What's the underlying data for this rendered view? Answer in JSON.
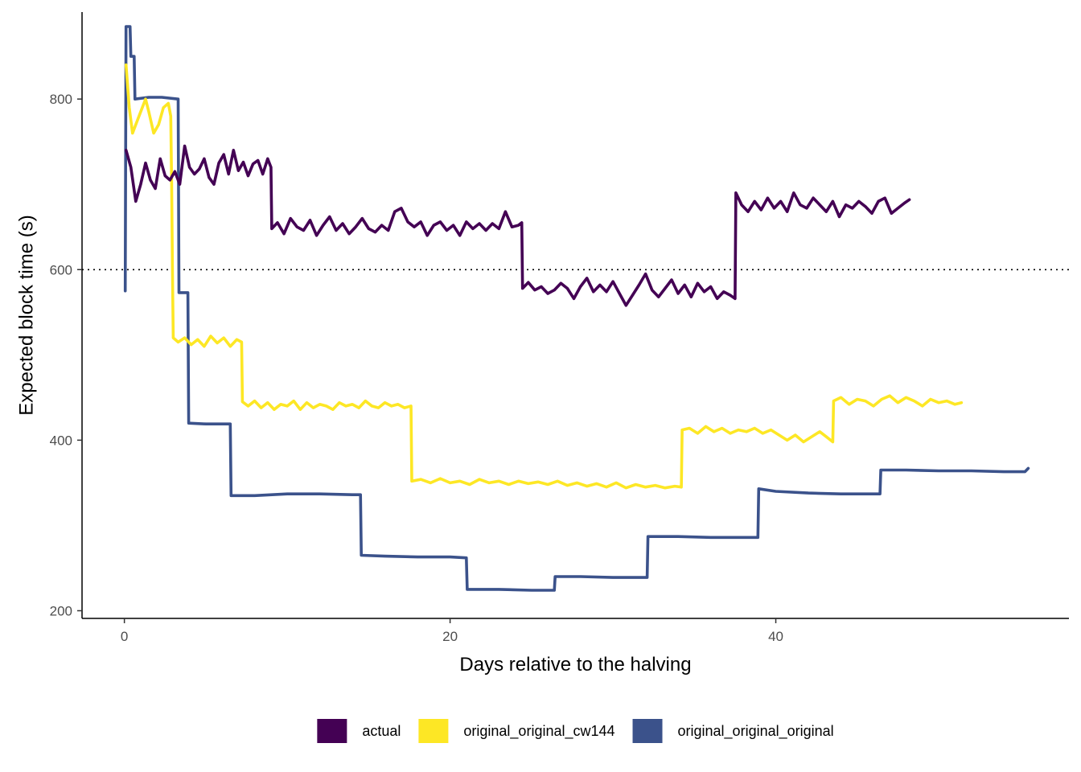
{
  "chart_data": {
    "type": "line",
    "xlabel": "Days relative to the halving",
    "ylabel": "Expected block time (s)",
    "xlim": [
      -2.6,
      58.0
    ],
    "ylim": [
      191,
      902
    ],
    "x_ticks": [
      0,
      20,
      40
    ],
    "y_ticks": [
      200,
      400,
      600,
      800
    ],
    "reference_line": {
      "y": 600,
      "style": "dotted"
    },
    "grid": false,
    "legend_position": "bottom",
    "series": [
      {
        "name": "actual",
        "color": "#440154",
        "points": [
          [
            0.1,
            740
          ],
          [
            0.4,
            720
          ],
          [
            0.7,
            680
          ],
          [
            1.0,
            700
          ],
          [
            1.3,
            725
          ],
          [
            1.6,
            705
          ],
          [
            1.9,
            695
          ],
          [
            2.2,
            730
          ],
          [
            2.5,
            710
          ],
          [
            2.8,
            705
          ],
          [
            3.1,
            715
          ],
          [
            3.4,
            700
          ],
          [
            3.7,
            745
          ],
          [
            4.0,
            720
          ],
          [
            4.3,
            712
          ],
          [
            4.6,
            718
          ],
          [
            4.9,
            730
          ],
          [
            5.2,
            708
          ],
          [
            5.5,
            700
          ],
          [
            5.8,
            725
          ],
          [
            6.1,
            735
          ],
          [
            6.4,
            712
          ],
          [
            6.7,
            740
          ],
          [
            7.0,
            716
          ],
          [
            7.3,
            726
          ],
          [
            7.6,
            710
          ],
          [
            7.9,
            724
          ],
          [
            8.2,
            728
          ],
          [
            8.5,
            712
          ],
          [
            8.8,
            730
          ],
          [
            9.0,
            720
          ],
          [
            9.05,
            648
          ],
          [
            9.4,
            655
          ],
          [
            9.8,
            642
          ],
          [
            10.2,
            660
          ],
          [
            10.6,
            650
          ],
          [
            11.0,
            646
          ],
          [
            11.4,
            658
          ],
          [
            11.8,
            640
          ],
          [
            12.2,
            652
          ],
          [
            12.6,
            662
          ],
          [
            13.0,
            646
          ],
          [
            13.4,
            654
          ],
          [
            13.8,
            642
          ],
          [
            14.2,
            650
          ],
          [
            14.6,
            660
          ],
          [
            15.0,
            648
          ],
          [
            15.4,
            644
          ],
          [
            15.8,
            652
          ],
          [
            16.2,
            646
          ],
          [
            16.6,
            668
          ],
          [
            17.0,
            672
          ],
          [
            17.4,
            656
          ],
          [
            17.8,
            650
          ],
          [
            18.2,
            656
          ],
          [
            18.6,
            640
          ],
          [
            19.0,
            652
          ],
          [
            19.4,
            656
          ],
          [
            19.8,
            646
          ],
          [
            20.2,
            652
          ],
          [
            20.6,
            640
          ],
          [
            21.0,
            656
          ],
          [
            21.4,
            648
          ],
          [
            21.8,
            654
          ],
          [
            22.2,
            646
          ],
          [
            22.6,
            654
          ],
          [
            23.0,
            648
          ],
          [
            23.4,
            668
          ],
          [
            23.8,
            650
          ],
          [
            24.2,
            652
          ],
          [
            24.4,
            655
          ],
          [
            24.45,
            578
          ],
          [
            24.8,
            585
          ],
          [
            25.2,
            576
          ],
          [
            25.6,
            580
          ],
          [
            26.0,
            572
          ],
          [
            26.4,
            576
          ],
          [
            26.8,
            584
          ],
          [
            27.2,
            578
          ],
          [
            27.6,
            566
          ],
          [
            28.0,
            580
          ],
          [
            28.4,
            590
          ],
          [
            28.8,
            574
          ],
          [
            29.2,
            582
          ],
          [
            29.6,
            574
          ],
          [
            30.0,
            586
          ],
          [
            30.4,
            572
          ],
          [
            30.8,
            558
          ],
          [
            31.2,
            570
          ],
          [
            31.6,
            582
          ],
          [
            32.0,
            595
          ],
          [
            32.4,
            576
          ],
          [
            32.8,
            568
          ],
          [
            33.2,
            578
          ],
          [
            33.6,
            588
          ],
          [
            34.0,
            572
          ],
          [
            34.4,
            582
          ],
          [
            34.8,
            568
          ],
          [
            35.2,
            584
          ],
          [
            35.6,
            574
          ],
          [
            36.0,
            580
          ],
          [
            36.4,
            566
          ],
          [
            36.8,
            574
          ],
          [
            37.2,
            570
          ],
          [
            37.5,
            566
          ],
          [
            37.55,
            690
          ],
          [
            37.9,
            676
          ],
          [
            38.3,
            668
          ],
          [
            38.7,
            680
          ],
          [
            39.1,
            670
          ],
          [
            39.5,
            684
          ],
          [
            39.9,
            672
          ],
          [
            40.3,
            680
          ],
          [
            40.7,
            668
          ],
          [
            41.1,
            690
          ],
          [
            41.5,
            676
          ],
          [
            41.9,
            672
          ],
          [
            42.3,
            684
          ],
          [
            42.7,
            676
          ],
          [
            43.1,
            668
          ],
          [
            43.5,
            680
          ],
          [
            43.9,
            662
          ],
          [
            44.3,
            676
          ],
          [
            44.7,
            672
          ],
          [
            45.1,
            680
          ],
          [
            45.5,
            674
          ],
          [
            45.9,
            666
          ],
          [
            46.3,
            680
          ],
          [
            46.7,
            684
          ],
          [
            47.1,
            666
          ],
          [
            47.5,
            672
          ],
          [
            47.9,
            678
          ],
          [
            48.2,
            682
          ]
        ]
      },
      {
        "name": "original_original_cw144",
        "color": "#FDE725",
        "points": [
          [
            0.1,
            840
          ],
          [
            0.3,
            790
          ],
          [
            0.5,
            760
          ],
          [
            0.8,
            775
          ],
          [
            1.1,
            790
          ],
          [
            1.3,
            800
          ],
          [
            1.5,
            785
          ],
          [
            1.8,
            760
          ],
          [
            2.1,
            770
          ],
          [
            2.4,
            790
          ],
          [
            2.7,
            795
          ],
          [
            2.85,
            780
          ],
          [
            2.9,
            700
          ],
          [
            2.95,
            600
          ],
          [
            3.0,
            520
          ],
          [
            3.3,
            515
          ],
          [
            3.7,
            520
          ],
          [
            4.1,
            512
          ],
          [
            4.5,
            518
          ],
          [
            4.9,
            510
          ],
          [
            5.3,
            522
          ],
          [
            5.7,
            514
          ],
          [
            6.1,
            520
          ],
          [
            6.5,
            510
          ],
          [
            6.9,
            518
          ],
          [
            7.2,
            515
          ],
          [
            7.25,
            445
          ],
          [
            7.6,
            440
          ],
          [
            8.0,
            446
          ],
          [
            8.4,
            438
          ],
          [
            8.8,
            444
          ],
          [
            9.2,
            436
          ],
          [
            9.6,
            442
          ],
          [
            10.0,
            440
          ],
          [
            10.4,
            446
          ],
          [
            10.8,
            436
          ],
          [
            11.2,
            444
          ],
          [
            11.6,
            438
          ],
          [
            12.0,
            442
          ],
          [
            12.4,
            440
          ],
          [
            12.8,
            436
          ],
          [
            13.2,
            444
          ],
          [
            13.6,
            440
          ],
          [
            14.0,
            442
          ],
          [
            14.4,
            438
          ],
          [
            14.8,
            446
          ],
          [
            15.2,
            440
          ],
          [
            15.6,
            438
          ],
          [
            16.0,
            444
          ],
          [
            16.4,
            440
          ],
          [
            16.8,
            442
          ],
          [
            17.2,
            438
          ],
          [
            17.6,
            440
          ],
          [
            17.65,
            352
          ],
          [
            18.2,
            354
          ],
          [
            18.8,
            350
          ],
          [
            19.4,
            355
          ],
          [
            20.0,
            350
          ],
          [
            20.6,
            352
          ],
          [
            21.2,
            348
          ],
          [
            21.8,
            354
          ],
          [
            22.4,
            350
          ],
          [
            23.0,
            352
          ],
          [
            23.6,
            348
          ],
          [
            24.2,
            352
          ],
          [
            24.8,
            349
          ],
          [
            25.4,
            351
          ],
          [
            26.0,
            348
          ],
          [
            26.6,
            352
          ],
          [
            27.2,
            347
          ],
          [
            27.8,
            350
          ],
          [
            28.4,
            346
          ],
          [
            29.0,
            349
          ],
          [
            29.6,
            345
          ],
          [
            30.2,
            350
          ],
          [
            30.8,
            344
          ],
          [
            31.4,
            348
          ],
          [
            32.0,
            345
          ],
          [
            32.6,
            347
          ],
          [
            33.2,
            344
          ],
          [
            33.8,
            346
          ],
          [
            34.2,
            345
          ],
          [
            34.25,
            412
          ],
          [
            34.7,
            414
          ],
          [
            35.2,
            408
          ],
          [
            35.7,
            416
          ],
          [
            36.2,
            410
          ],
          [
            36.7,
            414
          ],
          [
            37.2,
            408
          ],
          [
            37.7,
            412
          ],
          [
            38.2,
            410
          ],
          [
            38.7,
            414
          ],
          [
            39.2,
            408
          ],
          [
            39.7,
            412
          ],
          [
            40.2,
            406
          ],
          [
            40.7,
            400
          ],
          [
            41.2,
            406
          ],
          [
            41.7,
            398
          ],
          [
            42.2,
            404
          ],
          [
            42.7,
            410
          ],
          [
            43.1,
            404
          ],
          [
            43.5,
            398
          ],
          [
            43.55,
            446
          ],
          [
            44.0,
            450
          ],
          [
            44.5,
            442
          ],
          [
            45.0,
            448
          ],
          [
            45.5,
            446
          ],
          [
            46.0,
            440
          ],
          [
            46.5,
            448
          ],
          [
            47.0,
            452
          ],
          [
            47.5,
            444
          ],
          [
            48.0,
            450
          ],
          [
            48.5,
            446
          ],
          [
            49.0,
            440
          ],
          [
            49.5,
            448
          ],
          [
            50.0,
            444
          ],
          [
            50.5,
            446
          ],
          [
            51.0,
            442
          ],
          [
            51.4,
            444
          ]
        ]
      },
      {
        "name": "original_original_original",
        "color": "#3B528B",
        "points": [
          [
            0.05,
            575
          ],
          [
            0.1,
            885
          ],
          [
            0.35,
            885
          ],
          [
            0.4,
            850
          ],
          [
            0.6,
            850
          ],
          [
            0.65,
            800
          ],
          [
            1.5,
            802
          ],
          [
            2.3,
            802
          ],
          [
            3.3,
            800
          ],
          [
            3.35,
            573
          ],
          [
            3.9,
            573
          ],
          [
            3.95,
            420
          ],
          [
            5.0,
            419
          ],
          [
            6.5,
            419
          ],
          [
            6.55,
            335
          ],
          [
            8.0,
            335
          ],
          [
            10.0,
            337
          ],
          [
            12.0,
            337
          ],
          [
            14.0,
            336
          ],
          [
            14.5,
            336
          ],
          [
            14.55,
            265
          ],
          [
            16.0,
            264
          ],
          [
            18.0,
            263
          ],
          [
            20.0,
            263
          ],
          [
            21.0,
            262
          ],
          [
            21.05,
            225
          ],
          [
            23.0,
            225
          ],
          [
            25.0,
            224
          ],
          [
            26.4,
            224
          ],
          [
            26.45,
            240
          ],
          [
            28.0,
            240
          ],
          [
            30.0,
            239
          ],
          [
            32.1,
            239
          ],
          [
            32.15,
            287
          ],
          [
            34.0,
            287
          ],
          [
            36.0,
            286
          ],
          [
            38.9,
            286
          ],
          [
            38.95,
            343
          ],
          [
            40.0,
            340
          ],
          [
            42.0,
            338
          ],
          [
            44.0,
            337
          ],
          [
            46.4,
            337
          ],
          [
            46.45,
            365
          ],
          [
            48.0,
            365
          ],
          [
            50.0,
            364
          ],
          [
            52.0,
            364
          ],
          [
            54.0,
            363
          ],
          [
            55.3,
            363
          ],
          [
            55.5,
            367
          ]
        ]
      }
    ]
  }
}
